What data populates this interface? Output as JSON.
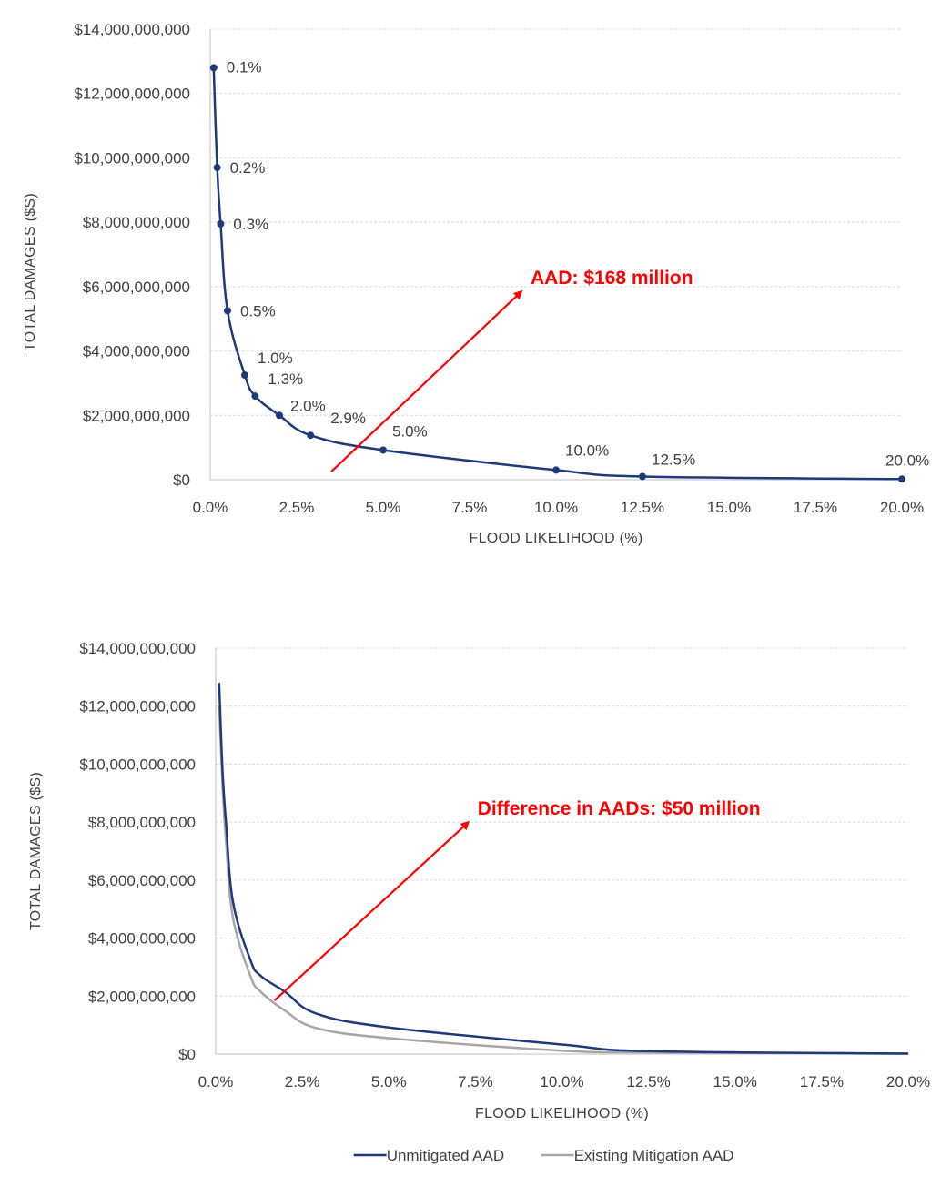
{
  "chart_data": [
    {
      "type": "line",
      "xlabel": "FLOOD LIKELIHOOD (%)",
      "ylabel": "TOTAL DAMAGES ($S)",
      "xlim": [
        0,
        20
      ],
      "ylim": [
        0,
        14000000000
      ],
      "x_ticks": [
        "0.0%",
        "2.5%",
        "5.0%",
        "7.5%",
        "10.0%",
        "12.5%",
        "15.0%",
        "17.5%",
        "20.0%"
      ],
      "y_ticks": [
        "$0",
        "$2,000,000,000",
        "$4,000,000,000",
        "$6,000,000,000",
        "$8,000,000,000",
        "$10,000,000,000",
        "$12,000,000,000",
        "$14,000,000,000"
      ],
      "grid": true,
      "series": [
        {
          "color": "#1f3a7a",
          "markers": true,
          "points": [
            {
              "x": 0.1,
              "y": 12800000000,
              "label": "0.1%"
            },
            {
              "x": 0.2,
              "y": 9700000000,
              "label": "0.2%"
            },
            {
              "x": 0.3,
              "y": 7950000000,
              "label": "0.3%"
            },
            {
              "x": 0.5,
              "y": 5250000000,
              "label": "0.5%"
            },
            {
              "x": 1.0,
              "y": 3250000000,
              "label": "1.0%"
            },
            {
              "x": 1.3,
              "y": 2600000000,
              "label": "1.3%"
            },
            {
              "x": 2.0,
              "y": 2000000000,
              "label": "2.0%"
            },
            {
              "x": 2.9,
              "y": 1380000000,
              "label": "2.9%"
            },
            {
              "x": 5.0,
              "y": 920000000,
              "label": "5.0%"
            },
            {
              "x": 10.0,
              "y": 300000000,
              "label": "10.0%"
            },
            {
              "x": 12.5,
              "y": 100000000,
              "label": "12.5%"
            },
            {
              "x": 20.0,
              "y": 20000000,
              "label": "20.0%"
            }
          ]
        }
      ],
      "annotation": {
        "text": "AAD: $168  million",
        "color": "#ff0000",
        "arrow_from": {
          "x": 3.5,
          "y": 250000000
        },
        "arrow_to": {
          "x": 9.0,
          "y": 5850000000
        }
      }
    },
    {
      "type": "line",
      "xlabel": "FLOOD LIKELIHOOD (%)",
      "ylabel": "TOTAL DAMAGES ($S)",
      "xlim": [
        0,
        20
      ],
      "ylim": [
        0,
        14000000000
      ],
      "x_ticks": [
        "0.0%",
        "2.5%",
        "5.0%",
        "7.5%",
        "10.0%",
        "12.5%",
        "15.0%",
        "17.5%",
        "20.0%"
      ],
      "y_ticks": [
        "$0",
        "$2,000,000,000",
        "$4,000,000,000",
        "$6,000,000,000",
        "$8,000,000,000",
        "$10,000,000,000",
        "$12,000,000,000",
        "$14,000,000,000"
      ],
      "grid": true,
      "legend_position": "bottom",
      "series": [
        {
          "name": "Unmitigated AAD",
          "color": "#1f3a7a",
          "markers": false,
          "points": [
            {
              "x": 0.1,
              "y": 12800000000
            },
            {
              "x": 0.2,
              "y": 9700000000
            },
            {
              "x": 0.3,
              "y": 7950000000
            },
            {
              "x": 0.5,
              "y": 5250000000
            },
            {
              "x": 1.0,
              "y": 3250000000
            },
            {
              "x": 1.3,
              "y": 2700000000
            },
            {
              "x": 2.0,
              "y": 2150000000
            },
            {
              "x": 2.9,
              "y": 1400000000
            },
            {
              "x": 5.0,
              "y": 920000000
            },
            {
              "x": 10.0,
              "y": 330000000
            },
            {
              "x": 12.5,
              "y": 100000000
            },
            {
              "x": 20.0,
              "y": 20000000
            }
          ]
        },
        {
          "name": "Existing Mitigation AAD",
          "color": "#a6a6a6",
          "markers": false,
          "points": [
            {
              "x": 0.1,
              "y": 12000000000
            },
            {
              "x": 0.2,
              "y": 9200000000
            },
            {
              "x": 0.3,
              "y": 7300000000
            },
            {
              "x": 0.5,
              "y": 4700000000
            },
            {
              "x": 1.0,
              "y": 2700000000
            },
            {
              "x": 1.3,
              "y": 2150000000
            },
            {
              "x": 2.0,
              "y": 1500000000
            },
            {
              "x": 2.9,
              "y": 900000000
            },
            {
              "x": 5.0,
              "y": 550000000
            },
            {
              "x": 10.0,
              "y": 120000000
            },
            {
              "x": 12.5,
              "y": 60000000
            },
            {
              "x": 20.0,
              "y": 10000000
            }
          ]
        }
      ],
      "annotation": {
        "text": "Difference in AADs:  $50  million",
        "color": "#ff0000",
        "arrow_from": {
          "x": 1.7,
          "y": 1850000000
        },
        "arrow_to": {
          "x": 7.3,
          "y": 8000000000
        }
      }
    }
  ]
}
